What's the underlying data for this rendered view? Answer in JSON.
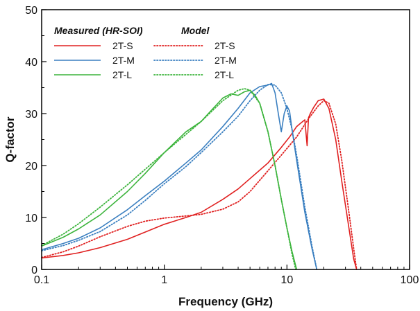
{
  "chart_data": {
    "type": "line",
    "x_scale": "log",
    "xlabel": "Frequency (GHz)",
    "ylabel": "Q-factor",
    "xlim": [
      0.1,
      100
    ],
    "ylim": [
      0,
      50
    ],
    "x_ticks": [
      0.1,
      1,
      10,
      100
    ],
    "x_tick_labels": [
      "0.1",
      "1",
      "10",
      "100"
    ],
    "y_ticks": [
      0,
      10,
      20,
      30,
      40,
      50
    ],
    "y_tick_labels": [
      "0",
      "10",
      "20",
      "30",
      "40",
      "50"
    ],
    "grid": false,
    "legend": {
      "placement": "top-left",
      "group_titles": [
        "Measured (HR-SOI)",
        "Model"
      ]
    },
    "colors": {
      "S": "#e02020",
      "M": "#3a7fc0",
      "L": "#3cb43c"
    },
    "series": [
      {
        "name": "2T-S",
        "group": "Measured (HR-SOI)",
        "color": "#e02020",
        "style": "solid",
        "x": [
          0.1,
          0.15,
          0.2,
          0.3,
          0.5,
          0.7,
          1.0,
          1.5,
          2.0,
          3.0,
          4.0,
          5.0,
          7.0,
          9.0,
          10.5,
          12,
          13,
          14,
          14.6,
          15.0,
          15.5,
          16.5,
          18,
          20,
          22,
          25,
          28,
          32,
          35,
          37
        ],
        "y": [
          2.2,
          2.7,
          3.2,
          4.2,
          5.8,
          7.2,
          8.7,
          10.0,
          11.0,
          13.5,
          15.5,
          17.5,
          20.5,
          23.5,
          25.5,
          27.5,
          28.2,
          28.8,
          23.8,
          29.2,
          30.0,
          31.2,
          32.5,
          32.8,
          31.0,
          25.0,
          17.0,
          8.0,
          2.0,
          0
        ]
      },
      {
        "name": "2T-M",
        "group": "Measured (HR-SOI)",
        "color": "#3a7fc0",
        "style": "solid",
        "x": [
          0.1,
          0.15,
          0.2,
          0.3,
          0.5,
          0.7,
          1.0,
          1.5,
          2.0,
          3.0,
          4.0,
          5.0,
          6.0,
          7.0,
          7.5,
          8.0,
          8.5,
          9.0,
          9.5,
          10.0,
          10.5,
          11,
          12,
          14,
          16,
          17.5
        ],
        "y": [
          3.8,
          5.0,
          6.0,
          8.0,
          11.5,
          14.2,
          17.0,
          20.5,
          23.0,
          27.5,
          31.0,
          34.0,
          35.2,
          35.5,
          35.8,
          34.0,
          30.0,
          26.5,
          30.0,
          31.5,
          30.5,
          27.0,
          21.0,
          11.0,
          4.0,
          0
        ]
      },
      {
        "name": "2T-L",
        "group": "Measured (HR-SOI)",
        "color": "#3cb43c",
        "style": "solid",
        "x": [
          0.1,
          0.15,
          0.2,
          0.3,
          0.5,
          0.7,
          1.0,
          1.5,
          2.0,
          2.5,
          3.0,
          3.5,
          4.0,
          4.5,
          5.0,
          5.5,
          6.0,
          7.0,
          8.0,
          9.0,
          10.0,
          11.0,
          12.0
        ],
        "y": [
          4.5,
          6.2,
          7.8,
          10.5,
          15.0,
          18.5,
          22.5,
          26.5,
          28.5,
          31.0,
          33.0,
          33.8,
          33.5,
          34.2,
          34.5,
          33.5,
          32.0,
          26.5,
          20.0,
          13.5,
          8.0,
          3.5,
          0
        ]
      },
      {
        "name": "2T-S",
        "group": "Model",
        "color": "#e02020",
        "style": "dotted",
        "x": [
          0.1,
          0.15,
          0.2,
          0.3,
          0.5,
          0.7,
          1.0,
          1.5,
          2.0,
          3.0,
          4.0,
          5.0,
          7.0,
          9.0,
          12,
          15,
          18,
          20,
          22,
          25,
          28,
          32,
          35,
          37
        ],
        "y": [
          2.3,
          3.4,
          4.5,
          6.3,
          8.3,
          9.3,
          9.9,
          10.3,
          10.6,
          11.6,
          13.0,
          15.0,
          19.0,
          22.0,
          25.5,
          29.0,
          31.5,
          32.5,
          32.0,
          28.0,
          21.0,
          11.0,
          4.0,
          0
        ]
      },
      {
        "name": "2T-M",
        "group": "Model",
        "color": "#3a7fc0",
        "style": "dotted",
        "x": [
          0.1,
          0.15,
          0.2,
          0.3,
          0.5,
          0.7,
          1.0,
          1.5,
          2.0,
          3.0,
          4.0,
          5.0,
          6.0,
          7.0,
          8.0,
          9.0,
          10.0,
          11,
          12,
          14,
          16,
          17.5
        ],
        "y": [
          3.6,
          4.6,
          5.6,
          7.3,
          10.5,
          13.3,
          16.5,
          19.8,
          22.5,
          26.5,
          29.5,
          32.5,
          34.5,
          35.6,
          35.5,
          34.0,
          31.0,
          27.0,
          22.0,
          12.0,
          4.5,
          0
        ]
      },
      {
        "name": "2T-L",
        "group": "Model",
        "color": "#3cb43c",
        "style": "dotted",
        "x": [
          0.1,
          0.15,
          0.2,
          0.3,
          0.5,
          0.7,
          1.0,
          1.5,
          2.0,
          3.0,
          4.0,
          4.5,
          5.0,
          6.0,
          7.0,
          8.0,
          9.0,
          10.0,
          11.0,
          11.8
        ],
        "y": [
          4.6,
          6.8,
          8.8,
          12.0,
          16.3,
          19.3,
          22.5,
          26.0,
          28.5,
          32.5,
          34.5,
          34.8,
          34.5,
          32.0,
          26.5,
          20.0,
          13.5,
          8.0,
          3.0,
          0
        ]
      }
    ]
  }
}
